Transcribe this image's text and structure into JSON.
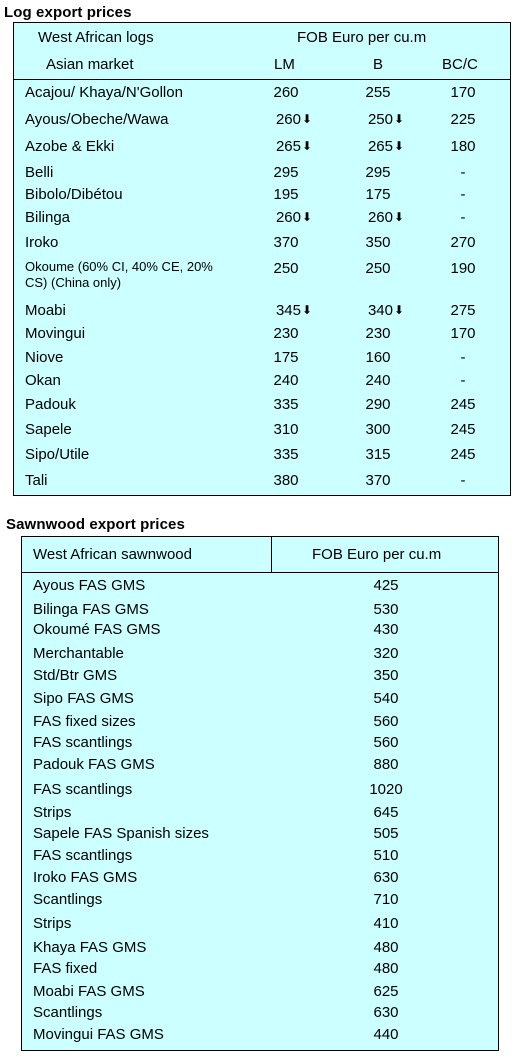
{
  "log_section": {
    "title": "Log export prices",
    "header1_left": "West African logs",
    "header1_right": "FOB Euro per cu.m",
    "header2_left": "Asian market",
    "col_lm": "LM",
    "col_b": "B",
    "col_bcc": "BC/C",
    "down_arrow": "⬇",
    "rows": [
      {
        "name": "Acajou/ Khaya/N'Gollon",
        "lm": "260",
        "lm_down": false,
        "b": "255",
        "b_down": false,
        "bcc": "170"
      },
      {
        "name": "Ayous/Obeche/Wawa",
        "lm": "260",
        "lm_down": true,
        "b": "250",
        "b_down": true,
        "bcc": "225"
      },
      {
        "name": "Azobe & Ekki",
        "lm": "265",
        "lm_down": true,
        "b": "265",
        "b_down": true,
        "bcc": "180"
      },
      {
        "name": "Belli",
        "lm": "295",
        "lm_down": false,
        "b": "295",
        "b_down": false,
        "bcc": "-"
      },
      {
        "name": "Bibolo/Dibétou",
        "lm": "195",
        "lm_down": false,
        "b": "175",
        "b_down": false,
        "bcc": "-"
      },
      {
        "name": "Bilinga",
        "lm": "260",
        "lm_down": true,
        "b": "260",
        "b_down": true,
        "bcc": "-"
      },
      {
        "name": "Iroko",
        "lm": "370",
        "lm_down": false,
        "b": "350",
        "b_down": false,
        "bcc": "270"
      },
      {
        "name": "Okoume (60% CI, 40% CE, 20% CS) (China only)",
        "lm": "250",
        "lm_down": false,
        "b": "250",
        "b_down": false,
        "bcc": "190"
      },
      {
        "name": "Moabi",
        "lm": "345",
        "lm_down": true,
        "b": "340",
        "b_down": true,
        "bcc": "275"
      },
      {
        "name": "Movingui",
        "lm": "230",
        "lm_down": false,
        "b": "230",
        "b_down": false,
        "bcc": "170"
      },
      {
        "name": "Niove",
        "lm": "175",
        "lm_down": false,
        "b": "160",
        "b_down": false,
        "bcc": "-"
      },
      {
        "name": "Okan",
        "lm": "240",
        "lm_down": false,
        "b": "240",
        "b_down": false,
        "bcc": "-"
      },
      {
        "name": "Padouk",
        "lm": "335",
        "lm_down": false,
        "b": "290",
        "b_down": false,
        "bcc": "245"
      },
      {
        "name": "Sapele",
        "lm": "310",
        "lm_down": false,
        "b": "300",
        "b_down": false,
        "bcc": "245"
      },
      {
        "name": "Sipo/Utile",
        "lm": "335",
        "lm_down": false,
        "b": "315",
        "b_down": false,
        "bcc": "245"
      },
      {
        "name": "Tali",
        "lm": "380",
        "lm_down": false,
        "b": "370",
        "b_down": false,
        "bcc": "-"
      }
    ]
  },
  "sawn_section": {
    "title": "Sawnwood export prices",
    "header_left": "West African sawnwood",
    "header_right": "FOB Euro per cu.m",
    "rows": [
      {
        "name": "Ayous FAS GMS",
        "price": "425"
      },
      {
        "name": "Bilinga FAS GMS",
        "price": "530"
      },
      {
        "name": "Okoumé FAS GMS",
        "price": "430"
      },
      {
        "name": "Merchantable",
        "price": "320"
      },
      {
        "name": "Std/Btr GMS",
        "price": "350"
      },
      {
        "name": "Sipo FAS GMS",
        "price": "540"
      },
      {
        "name": "FAS fixed sizes",
        "price": "560"
      },
      {
        "name": "FAS scantlings",
        "price": "560"
      },
      {
        "name": "Padouk FAS GMS",
        "price": "880"
      },
      {
        "name": "FAS scantlings",
        "price": "1020"
      },
      {
        "name": "Strips",
        "price": "645"
      },
      {
        "name": "Sapele FAS Spanish sizes",
        "price": "505"
      },
      {
        "name": "FAS scantlings",
        "price": "510"
      },
      {
        "name": "Iroko FAS GMS",
        "price": "630"
      },
      {
        "name": "Scantlings",
        "price": "710"
      },
      {
        "name": "Strips",
        "price": "410"
      },
      {
        "name": "Khaya FAS GMS",
        "price": "480"
      },
      {
        "name": "FAS fixed",
        "price": "480"
      },
      {
        "name": "Moabi FAS GMS",
        "price": "625"
      },
      {
        "name": "Scantlings",
        "price": "630"
      },
      {
        "name": "Movingui FAS GMS",
        "price": "440"
      }
    ]
  }
}
